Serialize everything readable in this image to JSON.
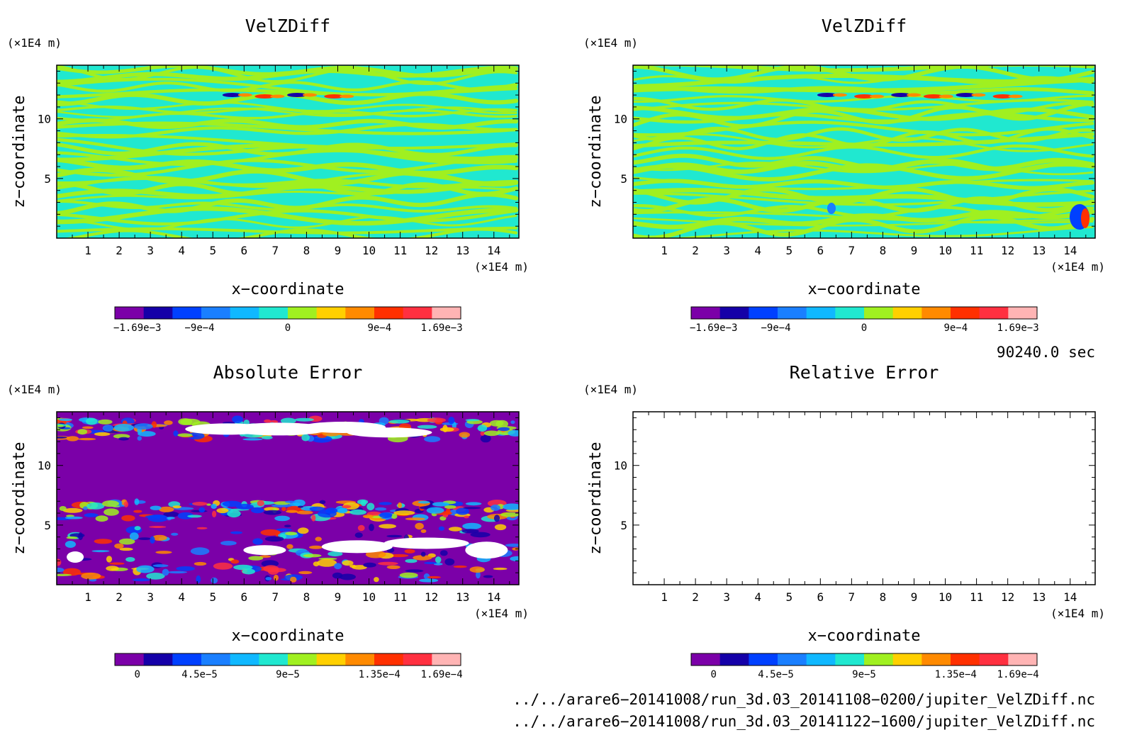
{
  "panels": [
    {
      "id": "velz-a",
      "title": "VelZDiff",
      "z_unit": "(×1E4 m)",
      "x_unit": "(×1E4 m)",
      "xlabel": "x−coordinate",
      "ylabel": "z−coordinate",
      "x_ticks": [
        "1",
        "2",
        "3",
        "4",
        "5",
        "6",
        "7",
        "8",
        "9",
        "10",
        "11",
        "12",
        "13",
        "14"
      ],
      "y_ticks": [
        "5",
        "10"
      ],
      "field": "velocity-difference",
      "colorbar_labels": [
        "−1.69e−3",
        "−9e−4",
        "0",
        "9e−4",
        "1.69e−3"
      ]
    },
    {
      "id": "velz-b",
      "title": "VelZDiff",
      "z_unit": "(×1E4 m)",
      "x_unit": "(×1E4 m)",
      "xlabel": "x−coordinate",
      "ylabel": "z−coordinate",
      "x_ticks": [
        "1",
        "2",
        "3",
        "4",
        "5",
        "6",
        "7",
        "8",
        "9",
        "10",
        "11",
        "12",
        "13",
        "14"
      ],
      "y_ticks": [
        "5",
        "10"
      ],
      "field": "velocity-difference",
      "colorbar_labels": [
        "−1.69e−3",
        "−9e−4",
        "0",
        "9e−4",
        "1.69e−3"
      ]
    },
    {
      "id": "abs-err",
      "title": "Absolute Error",
      "z_unit": "(×1E4 m)",
      "x_unit": "(×1E4 m)",
      "xlabel": "x−coordinate",
      "ylabel": "z−coordinate",
      "x_ticks": [
        "1",
        "2",
        "3",
        "4",
        "5",
        "6",
        "7",
        "8",
        "9",
        "10",
        "11",
        "12",
        "13",
        "14"
      ],
      "y_ticks": [
        "5",
        "10"
      ],
      "field": "absolute-error",
      "colorbar_labels": [
        "0",
        "4.5e−5",
        "9e−5",
        "1.35e−4",
        "1.69e−4"
      ]
    },
    {
      "id": "rel-err",
      "title": "Relative Error",
      "z_unit": "(×1E4 m)",
      "x_unit": "(×1E4 m)",
      "xlabel": "x−coordinate",
      "ylabel": "z−coordinate",
      "x_ticks": [
        "1",
        "2",
        "3",
        "4",
        "5",
        "6",
        "7",
        "8",
        "9",
        "10",
        "11",
        "12",
        "13",
        "14"
      ],
      "y_ticks": [
        "5",
        "10"
      ],
      "field": "empty",
      "colorbar_labels": [
        "0",
        "4.5e−5",
        "9e−5",
        "1.35e−4",
        "1.69e−4"
      ]
    }
  ],
  "colorbar_colors": [
    "#7b00a8",
    "#1500a8",
    "#0040ff",
    "#1a7fff",
    "#10b8ff",
    "#20e8d0",
    "#a0f020",
    "#ffd000",
    "#ff8a00",
    "#ff3000",
    "#ff3040",
    "#ffb4b4"
  ],
  "time_label": "90240.0 sec",
  "files": [
    "../../arare6−20141008/run_3d.03_20141108−0200/jupiter_VelZDiff.nc",
    "../../arare6−20141008/run_3d.03_20141122−1600/jupiter_VelZDiff.nc"
  ],
  "chart_data": [
    {
      "type": "heatmap",
      "title": "VelZDiff",
      "xlabel": "x−coordinate",
      "ylabel": "z−coordinate",
      "x_unit": "(×1E4 m)",
      "z_unit": "(×1E4 m)",
      "xlim": [
        0,
        14.8
      ],
      "ylim": [
        0,
        14.5
      ],
      "x_ticks": [
        1,
        2,
        3,
        4,
        5,
        6,
        7,
        8,
        9,
        10,
        11,
        12,
        13,
        14
      ],
      "y_ticks": [
        5,
        10
      ],
      "colorbar": {
        "min": -0.00169,
        "max": 0.00169,
        "levels": 12,
        "labels": [
          "−1.69e−3",
          "−9e−4",
          "0",
          "9e−4",
          "1.69e−3"
        ]
      }
    },
    {
      "type": "heatmap",
      "title": "VelZDiff",
      "xlabel": "x−coordinate",
      "ylabel": "z−coordinate",
      "x_unit": "(×1E4 m)",
      "z_unit": "(×1E4 m)",
      "xlim": [
        0,
        14.8
      ],
      "ylim": [
        0,
        14.5
      ],
      "x_ticks": [
        1,
        2,
        3,
        4,
        5,
        6,
        7,
        8,
        9,
        10,
        11,
        12,
        13,
        14
      ],
      "y_ticks": [
        5,
        10
      ],
      "colorbar": {
        "min": -0.00169,
        "max": 0.00169,
        "levels": 12,
        "labels": [
          "−1.69e−3",
          "−9e−4",
          "0",
          "9e−4",
          "1.69e−3"
        ]
      }
    },
    {
      "type": "heatmap",
      "title": "Absolute Error",
      "xlabel": "x−coordinate",
      "ylabel": "z−coordinate",
      "x_unit": "(×1E4 m)",
      "z_unit": "(×1E4 m)",
      "xlim": [
        0,
        14.8
      ],
      "ylim": [
        0,
        14.5
      ],
      "x_ticks": [
        1,
        2,
        3,
        4,
        5,
        6,
        7,
        8,
        9,
        10,
        11,
        12,
        13,
        14
      ],
      "y_ticks": [
        5,
        10
      ],
      "colorbar": {
        "min": 0,
        "max": 0.000169,
        "levels": 12,
        "labels": [
          "0",
          "4.5e−5",
          "9e−5",
          "1.35e−4",
          "1.69e−4"
        ]
      }
    },
    {
      "type": "heatmap",
      "title": "Relative Error",
      "xlabel": "x−coordinate",
      "ylabel": "z−coordinate",
      "x_unit": "(×1E4 m)",
      "z_unit": "(×1E4 m)",
      "xlim": [
        0,
        14.8
      ],
      "ylim": [
        0,
        14.5
      ],
      "x_ticks": [
        1,
        2,
        3,
        4,
        5,
        6,
        7,
        8,
        9,
        10,
        11,
        12,
        13,
        14
      ],
      "y_ticks": [
        5,
        10
      ],
      "values": [],
      "colorbar": {
        "min": 0,
        "max": 0.000169,
        "levels": 12,
        "labels": [
          "0",
          "4.5e−5",
          "9e−5",
          "1.35e−4",
          "1.69e−4"
        ]
      }
    }
  ]
}
